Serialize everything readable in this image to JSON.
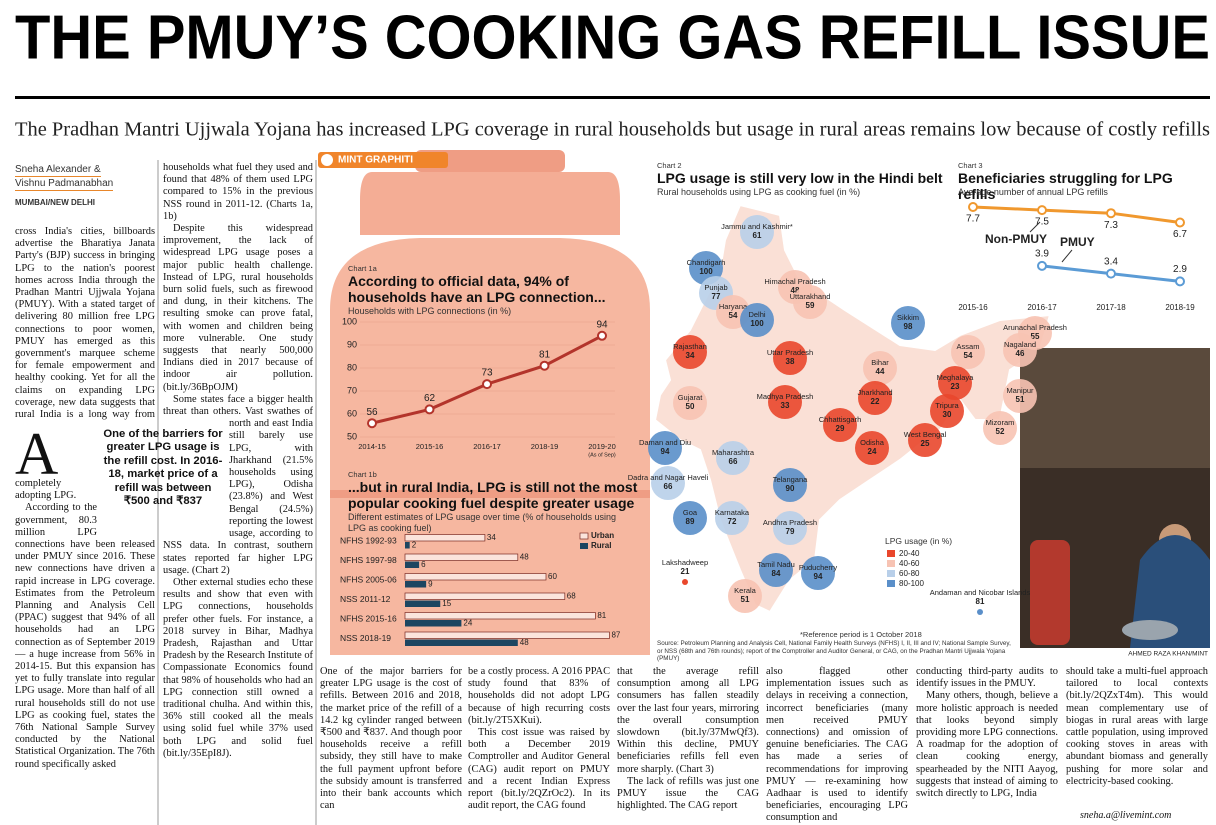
{
  "header": {
    "title": "THE PMUY’S COOKING GAS REFILL ISSUE",
    "subtitle": "The Pradhan Mantri Ujjwala Yojana has increased LPG coverage in rural households but usage in rural areas remains low because of costly refills"
  },
  "article": {
    "byline": [
      "Sneha Alexander &",
      "Vishnu Padmanabhan"
    ],
    "dateline": "MUMBAI/NEW DELHI",
    "quote": "One of the barriers for greater LPG usage is the refill cost. In 2016-18, market price of a refill was between ₹500 and ₹837",
    "columns": [
      [
        "Across India's cities, billboards advertise the Bharatiya Janata Party's (BJP) success in bringing LPG to the nation's poorest homes across India through the Pradhan Mantri Ujjwala Yojana (PMUY). With a stated target of delivering 80 million free LPG connections to poor women, PMUY has emerged as this government's marquee scheme for female empowerment and healthy cooking. Yet for all the claims on expanding LPG coverage, new data suggests that rural India is a long way from completely adopting LPG.",
        "According to the government, 80.3 million LPG connections have been released under PMUY since 2016. These new connections have driven a rapid increase in LPG coverage. Estimates from the Petroleum Planning and Analysis Cell (PPAC) suggest that 94% of all households had an LPG connection as of September 2019 — a huge increase from 56% in 2014-15. But this expansion has yet to fully translate into regular LPG usage. More than half of all rural households still do not use LPG as cooking fuel, states the 76th National Sample Survey conducted by the National Statistical Organization. The 76th round specifically asked"
      ],
      [
        "households what fuel they used and found that 48% of them used LPG compared to 15% in the previous NSS round in 2011-12. (Charts 1a, 1b)",
        "Despite this widespread improvement, the lack of widespread LPG usage poses a major public health challenge. Instead of LPG, rural households burn solid fuels, such as firewood and dung, in their kitchens. The resulting smoke can prove fatal, with women and children being more vulnerable. One study suggests that nearly 500,000 Indians died in 2017 because of indoor air pollution. (bit.ly/36BpOJM)",
        "Some states face a bigger health threat than others. Vast swathes of north and east India still barely use LPG, with Jharkhand (21.5% households using LPG), Odisha (23.8%) and West Bengal (24.5%) reporting the lowest usage, according to NSS data. In contrast, southern states reported far higher LPG usage. (Chart 2)",
        "Other external studies echo these results and show that even with LPG connections, households prefer other fuels. For instance, a 2018 survey in Bihar, Madhya Pradesh, Rajasthan and Uttar Pradesh by the Research Institute of Compassionate Economics found that 98% of households who had an LPG connection still owned a traditional chulha. And within this, 36% still cooked all the meals using solid fuel while 37% used both LPG and solid fuel (bit.ly/35EpI8J)."
      ],
      [
        "One of the major barriers for greater LPG usage is the cost of refills. Between 2016 and 2018, the market price of the refill of a 14.2 kg cylinder ranged between ₹500 and ₹837. And though poor households receive a refill subsidy, they still have to make the full payment upfront before the subsidy amount is transferred into their bank accounts which can"
      ],
      [
        "be a costly process. A 2016 PPAC study found that 83% of households did not adopt LPG because of high recurring costs (bit.ly/2T5XKui).",
        "This cost issue was raised by both a December 2019 Comptroller and Auditor General (CAG) audit report on PMUY and a recent Indian Express report (bit.ly/2QZrOc2). In its audit report, the CAG found"
      ],
      [
        "that the average refill consumption among all LPG consumers has fallen steadily over the last four years, mirroring the overall consumption slowdown (bit.ly/37MwQf3). Within this decline, PMUY beneficiaries refills fell even more sharply. (Chart 3)",
        "The lack of refills was just one PMUY issue the CAG highlighted. The CAG report"
      ],
      [
        "also flagged other implementation issues such as delays in receiving a connection, incorrect beneficiaries (many men received PMUY connections) and omission of genuine beneficiaries. The CAG has made a series of recommendations for improving PMUY — re-examining how Aadhaar is used to identify beneficiaries, encouraging LPG consumption and"
      ],
      [
        "conducting third-party audits to identify issues in the PMUY.",
        "Many others, though, believe a more holistic approach is needed that looks beyond simply providing more LPG connections. A roadmap for the adoption of clean cooking energy, spearheaded by the NITI Aayog, suggests that instead of aiming to switch directly to LPG, India"
      ],
      [
        "should take a multi-fuel approach tailored to local contexts (bit.ly/2QZxT4m). This would mean complementary use of biogas in rural areas with large cattle population, using improved cooking stoves in areas with abundant biomass and generally pushing for more solar and electricity-based cooking."
      ]
    ],
    "email": "sneha.a@livemint.com"
  },
  "graphic": {
    "badge": "MINT GRAPHITI",
    "photo_credit": "AHMED RAZA KHAN/MINT"
  },
  "chart_data": [
    {
      "type": "line",
      "label": "Chart 1a",
      "title": "According to official data, 94% of households have an LPG connection...",
      "subtitle": "Households with LPG connections (in %)",
      "categories": [
        "2014-15",
        "2015-16",
        "2016-17",
        "2018-19",
        "2019-20"
      ],
      "category_note": "(As of Sep)",
      "values": [
        56,
        62,
        73,
        81,
        94
      ],
      "color": "#b3342b",
      "ylim": [
        50,
        100
      ],
      "yticks": [
        50,
        60,
        70,
        80,
        90,
        100
      ],
      "grid": true
    },
    {
      "type": "bar",
      "label": "Chart 1b",
      "title": "...but in rural India, LPG is still not the most popular cooking fuel despite greater usage",
      "subtitle": "Different estimates of LPG usage over time (% of households using LPG as cooking fuel)",
      "categories": [
        "NFHS 1992-93",
        "NFHS 1997-98",
        "NFHS 2005-06",
        "NSS 2011-12",
        "NFHS 2015-16",
        "NSS 2018-19"
      ],
      "series": [
        {
          "name": "Urban",
          "color": "#fbe4dc",
          "values": [
            34,
            48,
            60,
            68,
            81,
            87
          ]
        },
        {
          "name": "Rural",
          "color": "#1d4661",
          "values": [
            2,
            6,
            9,
            15,
            24,
            48
          ]
        }
      ]
    },
    {
      "type": "line",
      "label": "Chart 3",
      "title": "Beneficiaries struggling for LPG refills",
      "subtitle": "Average number of annual LPG refills",
      "categories": [
        "2015-16",
        "2016-17",
        "2017-18",
        "2018-19"
      ],
      "series": [
        {
          "name": "Non-PMUY",
          "color": "#f0982e",
          "values": [
            7.7,
            7.5,
            7.3,
            6.7
          ]
        },
        {
          "name": "PMUY",
          "color": "#5b9bd5",
          "values": [
            null,
            3.9,
            3.4,
            2.9
          ]
        }
      ]
    }
  ],
  "map": {
    "label": "Chart 2",
    "title": "LPG usage is still very low in the Hindi belt",
    "subtitle": "Rural households using LPG as cooking fuel (in %)",
    "legend_title": "LPG usage (in %)",
    "classes": [
      {
        "label": "20-40",
        "min": 20,
        "max": 40,
        "color": "#e9472c"
      },
      {
        "label": "40-60",
        "min": 40,
        "max": 60,
        "color": "#f7c3b3"
      },
      {
        "label": "60-80",
        "min": 60,
        "max": 80,
        "color": "#b8cfe9"
      },
      {
        "label": "80-100",
        "min": 80,
        "max": 100,
        "color": "#5a8fc9"
      }
    ],
    "states": [
      {
        "name": "Jammu and Kashmir*",
        "value": 61
      },
      {
        "name": "Himachal Pradesh",
        "value": 48
      },
      {
        "name": "Chandigarh",
        "value": 100
      },
      {
        "name": "Punjab",
        "value": 77
      },
      {
        "name": "Haryana",
        "value": 54
      },
      {
        "name": "Delhi",
        "value": 100
      },
      {
        "name": "Uttarakhand",
        "value": 59
      },
      {
        "name": "Rajasthan",
        "value": 34
      },
      {
        "name": "Uttar Pradesh",
        "value": 38
      },
      {
        "name": "Bihar",
        "value": 44
      },
      {
        "name": "Sikkim",
        "value": 98
      },
      {
        "name": "Arunachal Pradesh",
        "value": 55
      },
      {
        "name": "Assam",
        "value": 54
      },
      {
        "name": "Nagaland",
        "value": 46
      },
      {
        "name": "Meghalaya",
        "value": 23
      },
      {
        "name": "Manipur",
        "value": 51
      },
      {
        "name": "Tripura",
        "value": 30
      },
      {
        "name": "Mizoram",
        "value": 52
      },
      {
        "name": "Gujarat",
        "value": 50
      },
      {
        "name": "Madhya Pradesh",
        "value": 33
      },
      {
        "name": "Jharkhand",
        "value": 22
      },
      {
        "name": "Chhattisgarh",
        "value": 29
      },
      {
        "name": "West Bengal",
        "value": 25
      },
      {
        "name": "Odisha",
        "value": 24
      },
      {
        "name": "Daman and Diu",
        "value": 94
      },
      {
        "name": "Dadra and Nagar Haveli",
        "value": 66
      },
      {
        "name": "Maharashtra",
        "value": 66
      },
      {
        "name": "Telangana",
        "value": 90
      },
      {
        "name": "Goa",
        "value": 89
      },
      {
        "name": "Karnataka",
        "value": 72
      },
      {
        "name": "Andhra Pradesh",
        "value": 79
      },
      {
        "name": "Lakshadweep",
        "value": 21
      },
      {
        "name": "Puducherry",
        "value": 94
      },
      {
        "name": "Tamil Nadu",
        "value": 84
      },
      {
        "name": "Kerala",
        "value": 51
      },
      {
        "name": "Andaman and Nicobar Islands",
        "value": 81
      }
    ],
    "note": "*Reference period is 1 October 2018",
    "source": "Source: Petroleum Planning and Analysis Cell, National Family Health Surveys (NFHS) I, II, III and IV; National Sample Survey, or NSS (68th and 76th rounds); report of the Comptroller and Auditor General, or CAG, on the Pradhan Mantri Ujjwala Yojana (PMUY)"
  }
}
